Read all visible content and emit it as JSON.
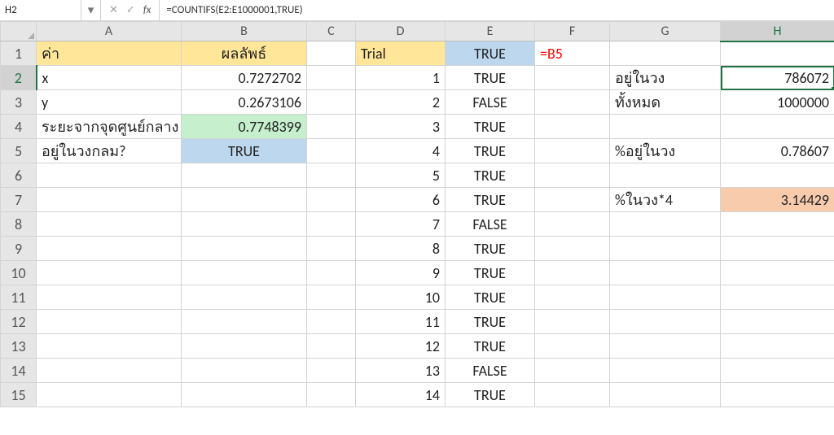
{
  "formulaBar": {
    "nameBox": "H2",
    "cancelIcon": "✕",
    "confirmIcon": "✓",
    "fxLabel": "fx",
    "formula": "=COUNTIFS(E2:E1000001,TRUE)"
  },
  "colors": {
    "headerYellow": "#ffe699",
    "headerBlue": "#bdd7ee",
    "greenFill": "#c6efce",
    "orangeFill": "#f8cbad",
    "redText": "#ff0000",
    "selectionGreen": "#217346",
    "gridLine": "#d4d4d4",
    "headerGray": "#e6e6e6"
  },
  "columns": [
    "A",
    "B",
    "C",
    "D",
    "E",
    "F",
    "G",
    "H"
  ],
  "activeCell": {
    "col": "H",
    "row": 2
  },
  "rows": [
    {
      "r": 1,
      "cells": {
        "A": {
          "v": "ค่า",
          "bg": "headerYellow"
        },
        "B": {
          "v": "ผลลัพธ์",
          "bg": "headerYellow",
          "align": "center"
        },
        "C": {
          "v": ""
        },
        "D": {
          "v": "Trial",
          "bg": "headerYellow"
        },
        "E": {
          "v": "TRUE",
          "bg": "headerBlue",
          "align": "center"
        },
        "F": {
          "v": "=B5",
          "color": "redText"
        },
        "G": {
          "v": ""
        },
        "H": {
          "v": ""
        }
      }
    },
    {
      "r": 2,
      "cells": {
        "A": {
          "v": "x"
        },
        "B": {
          "v": "0.7272702",
          "align": "right"
        },
        "C": {
          "v": ""
        },
        "D": {
          "v": "1",
          "align": "right"
        },
        "E": {
          "v": "TRUE",
          "align": "center"
        },
        "F": {
          "v": ""
        },
        "G": {
          "v": "อยู่ในวง"
        },
        "H": {
          "v": "786072",
          "align": "right",
          "active": true
        }
      }
    },
    {
      "r": 3,
      "cells": {
        "A": {
          "v": "y"
        },
        "B": {
          "v": "0.2673106",
          "align": "right"
        },
        "C": {
          "v": ""
        },
        "D": {
          "v": "2",
          "align": "right"
        },
        "E": {
          "v": "FALSE",
          "align": "center"
        },
        "F": {
          "v": ""
        },
        "G": {
          "v": "ทั้งหมด"
        },
        "H": {
          "v": "1000000",
          "align": "right"
        }
      }
    },
    {
      "r": 4,
      "cells": {
        "A": {
          "v": "ระยะจากจุดศูนย์กลาง"
        },
        "B": {
          "v": "0.7748399",
          "bg": "greenFill",
          "align": "right"
        },
        "C": {
          "v": ""
        },
        "D": {
          "v": "3",
          "align": "right"
        },
        "E": {
          "v": "TRUE",
          "align": "center"
        },
        "F": {
          "v": ""
        },
        "G": {
          "v": ""
        },
        "H": {
          "v": ""
        }
      }
    },
    {
      "r": 5,
      "cells": {
        "A": {
          "v": "อยู่ในวงกลม?"
        },
        "B": {
          "v": "TRUE",
          "bg": "headerBlue",
          "align": "center"
        },
        "C": {
          "v": ""
        },
        "D": {
          "v": "4",
          "align": "right"
        },
        "E": {
          "v": "TRUE",
          "align": "center"
        },
        "F": {
          "v": ""
        },
        "G": {
          "v": "%อยู่ในวง"
        },
        "H": {
          "v": "0.78607",
          "align": "right"
        }
      }
    },
    {
      "r": 6,
      "cells": {
        "A": {
          "v": ""
        },
        "B": {
          "v": ""
        },
        "C": {
          "v": ""
        },
        "D": {
          "v": "5",
          "align": "right"
        },
        "E": {
          "v": "TRUE",
          "align": "center"
        },
        "F": {
          "v": ""
        },
        "G": {
          "v": ""
        },
        "H": {
          "v": ""
        }
      }
    },
    {
      "r": 7,
      "cells": {
        "A": {
          "v": ""
        },
        "B": {
          "v": ""
        },
        "C": {
          "v": ""
        },
        "D": {
          "v": "6",
          "align": "right"
        },
        "E": {
          "v": "TRUE",
          "align": "center"
        },
        "F": {
          "v": ""
        },
        "G": {
          "v": "%ในวง*4"
        },
        "H": {
          "v": "3.14429",
          "bg": "orangeFill",
          "align": "right"
        }
      }
    },
    {
      "r": 8,
      "cells": {
        "A": {
          "v": ""
        },
        "B": {
          "v": ""
        },
        "C": {
          "v": ""
        },
        "D": {
          "v": "7",
          "align": "right"
        },
        "E": {
          "v": "FALSE",
          "align": "center"
        },
        "F": {
          "v": ""
        },
        "G": {
          "v": ""
        },
        "H": {
          "v": ""
        }
      }
    },
    {
      "r": 9,
      "cells": {
        "A": {
          "v": ""
        },
        "B": {
          "v": ""
        },
        "C": {
          "v": ""
        },
        "D": {
          "v": "8",
          "align": "right"
        },
        "E": {
          "v": "TRUE",
          "align": "center"
        },
        "F": {
          "v": ""
        },
        "G": {
          "v": ""
        },
        "H": {
          "v": ""
        }
      }
    },
    {
      "r": 10,
      "cells": {
        "A": {
          "v": ""
        },
        "B": {
          "v": ""
        },
        "C": {
          "v": ""
        },
        "D": {
          "v": "9",
          "align": "right"
        },
        "E": {
          "v": "TRUE",
          "align": "center"
        },
        "F": {
          "v": ""
        },
        "G": {
          "v": ""
        },
        "H": {
          "v": ""
        }
      }
    },
    {
      "r": 11,
      "cells": {
        "A": {
          "v": ""
        },
        "B": {
          "v": ""
        },
        "C": {
          "v": ""
        },
        "D": {
          "v": "10",
          "align": "right"
        },
        "E": {
          "v": "TRUE",
          "align": "center"
        },
        "F": {
          "v": ""
        },
        "G": {
          "v": ""
        },
        "H": {
          "v": ""
        }
      }
    },
    {
      "r": 12,
      "cells": {
        "A": {
          "v": ""
        },
        "B": {
          "v": ""
        },
        "C": {
          "v": ""
        },
        "D": {
          "v": "11",
          "align": "right"
        },
        "E": {
          "v": "TRUE",
          "align": "center"
        },
        "F": {
          "v": ""
        },
        "G": {
          "v": ""
        },
        "H": {
          "v": ""
        }
      }
    },
    {
      "r": 13,
      "cells": {
        "A": {
          "v": ""
        },
        "B": {
          "v": ""
        },
        "C": {
          "v": ""
        },
        "D": {
          "v": "12",
          "align": "right"
        },
        "E": {
          "v": "TRUE",
          "align": "center"
        },
        "F": {
          "v": ""
        },
        "G": {
          "v": ""
        },
        "H": {
          "v": ""
        }
      }
    },
    {
      "r": 14,
      "cells": {
        "A": {
          "v": ""
        },
        "B": {
          "v": ""
        },
        "C": {
          "v": ""
        },
        "D": {
          "v": "13",
          "align": "right"
        },
        "E": {
          "v": "FALSE",
          "align": "center"
        },
        "F": {
          "v": ""
        },
        "G": {
          "v": ""
        },
        "H": {
          "v": ""
        }
      }
    },
    {
      "r": 15,
      "cells": {
        "A": {
          "v": ""
        },
        "B": {
          "v": ""
        },
        "C": {
          "v": ""
        },
        "D": {
          "v": "14",
          "align": "right"
        },
        "E": {
          "v": "TRUE",
          "align": "center"
        },
        "F": {
          "v": ""
        },
        "G": {
          "v": ""
        },
        "H": {
          "v": ""
        }
      }
    }
  ]
}
